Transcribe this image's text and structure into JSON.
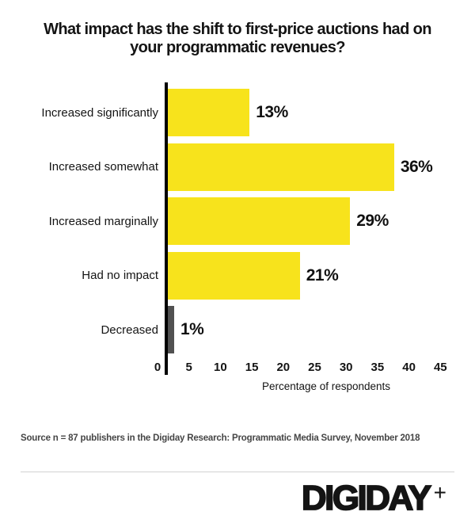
{
  "header": {
    "title_lines": [
      "What impact has the shift to first-price auctions had on",
      "your programmatic revenues?"
    ]
  },
  "chart_data": {
    "type": "bar",
    "orientation": "horizontal",
    "title": "What impact has the shift to first-price auctions had on your programmatic revenues?",
    "categories": [
      "Increased significantly",
      "Increased somewhat",
      "Increased marginally",
      "Had no impact",
      "Decreased"
    ],
    "values": [
      13,
      36,
      29,
      21,
      1
    ],
    "value_labels": [
      "13%",
      "36%",
      "29%",
      "21%",
      "1%"
    ],
    "bar_colors": [
      "#F7E31C",
      "#F7E31C",
      "#F7E31C",
      "#F7E31C",
      "#515151"
    ],
    "xlabel": "Percentage of respondents",
    "ylabel": "",
    "xticks": [
      0,
      5,
      10,
      15,
      20,
      25,
      30,
      35,
      40,
      45
    ],
    "xlim": [
      0,
      45
    ],
    "grid": false,
    "legend": false
  },
  "footer": {
    "source": "Source n = 87 publishers in the Digiday Research: Programmatic Media Survey, November 2018",
    "logo_text": "DIGIDAY",
    "logo_plus": "+"
  },
  "colors": {
    "bar_yellow": "#F7E31C",
    "bar_gray": "#515151",
    "axis": "#000000",
    "divider": "#D2D2D2",
    "source_text": "#454545",
    "background": "#FFFFFF"
  }
}
